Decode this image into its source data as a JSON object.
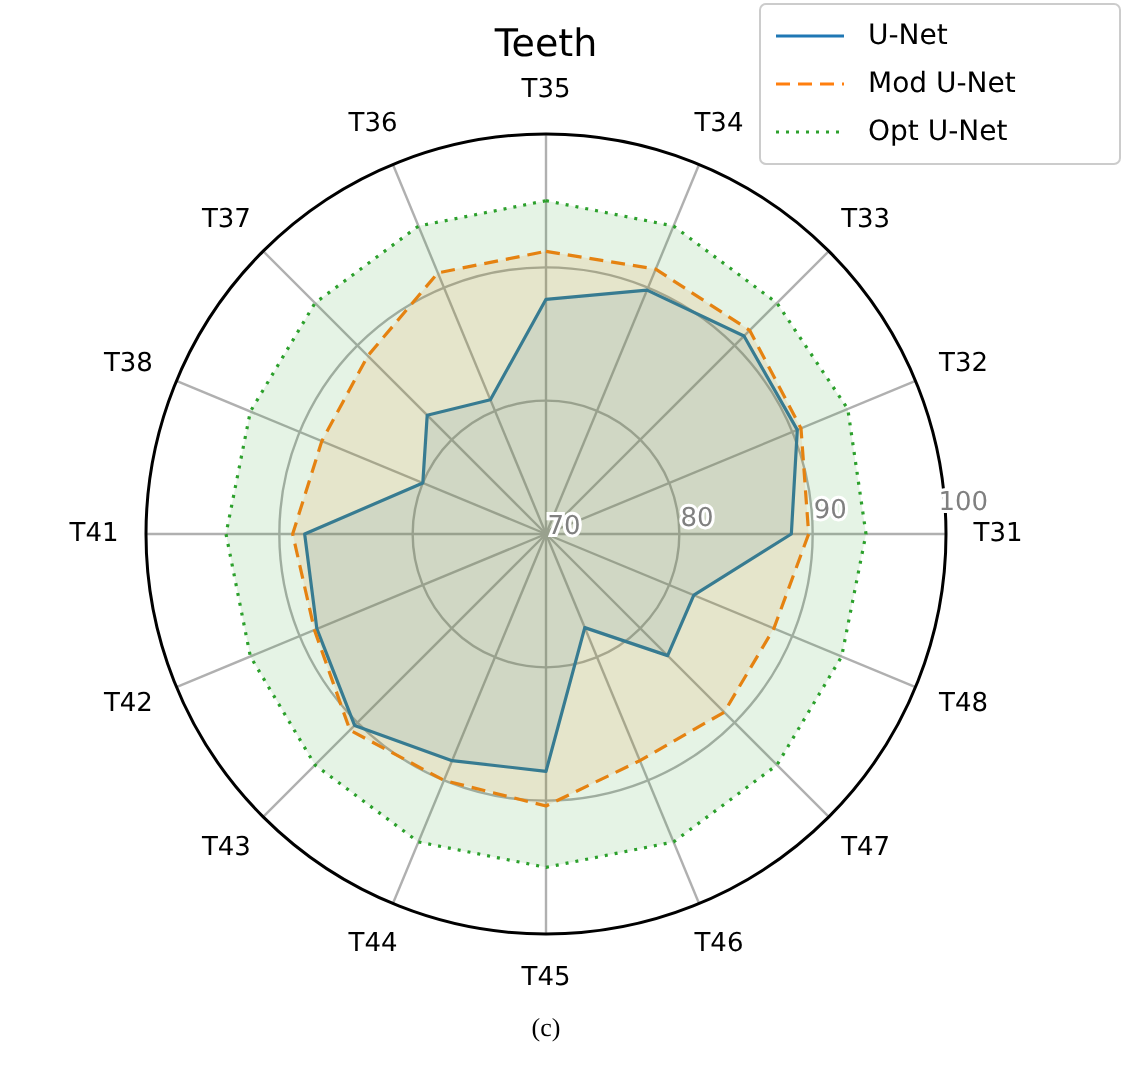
{
  "chart_data": {
    "type": "radar",
    "title": "Teeth",
    "categories": [
      "T35",
      "T34",
      "T33",
      "T32",
      "T31",
      "T48",
      "T47",
      "T46",
      "T45",
      "T44",
      "T43",
      "T42",
      "T41",
      "T38",
      "T37",
      "T36"
    ],
    "series": [
      {
        "name": "U-Net",
        "color": "#1f77b4",
        "line_style": "solid",
        "values": [
          87.6,
          89.8,
          91,
          90.4,
          88.4,
          82,
          82.9,
          77.6,
          87.8,
          88.4,
          90.3,
          88.6,
          88.1,
          80,
          82.6,
          80.9
        ]
      },
      {
        "name": "Mod U-Net",
        "color": "#ff7f0e",
        "line_style": "dashed",
        "values": [
          91.2,
          91.5,
          91.6,
          90.7,
          89.7,
          88.5,
          88.9,
          88.4,
          90.4,
          90,
          90.8,
          88.8,
          89,
          88.2,
          88.9,
          91.2
        ]
      },
      {
        "name": "Opt U-Net",
        "color": "#2ca02c",
        "line_style": "dotted",
        "values": [
          95,
          95,
          94.5,
          94.5,
          94,
          94,
          94.5,
          95,
          95,
          95,
          94.5,
          94,
          94,
          94,
          94.5,
          95
        ]
      }
    ],
    "ylim": [
      70,
      100
    ],
    "yticks": [
      70,
      80,
      90,
      100
    ],
    "grid": true,
    "legend": "top right",
    "annotations": [
      "(c)"
    ]
  }
}
